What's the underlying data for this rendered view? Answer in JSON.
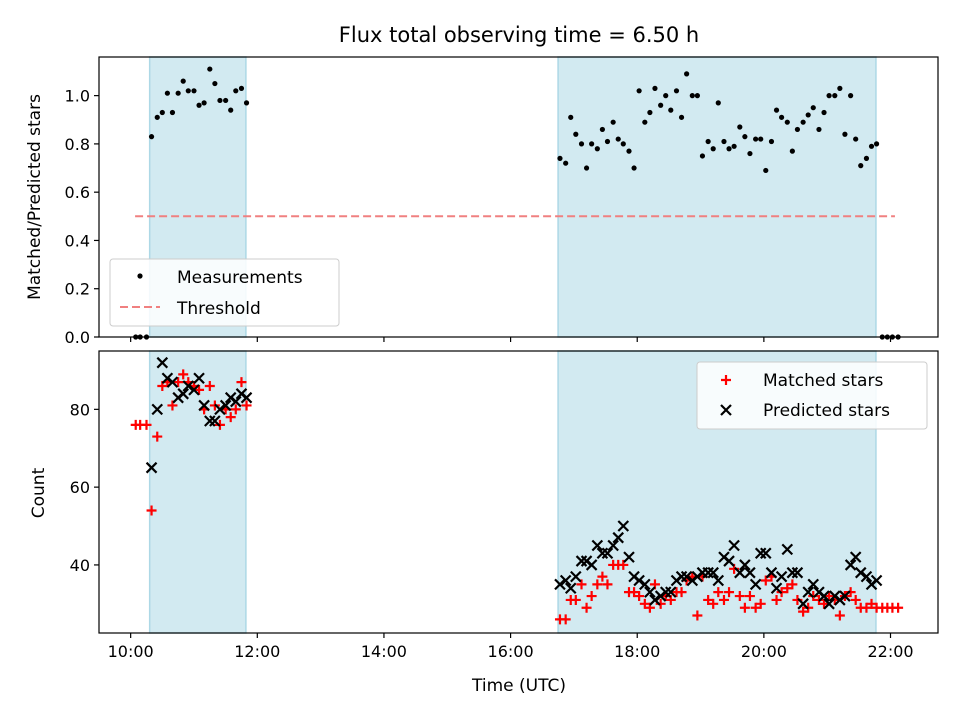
{
  "chart_data": [
    {
      "type": "scatter",
      "title": "Flux total observing time = 6.50 h",
      "xlabel": "",
      "ylabel": "Matched/Predicted stars",
      "ylim": [
        0,
        1.16
      ],
      "xlim": [
        9.5,
        22.75
      ],
      "yticks": [
        "0.0",
        "0.2",
        "0.4",
        "0.6",
        "0.8",
        "1.0"
      ],
      "legend": {
        "placement": "bottom-left",
        "entries": [
          "Measurements",
          "Threshold"
        ]
      },
      "shaded_intervals": [
        [
          10.3,
          11.82
        ],
        [
          16.75,
          21.77
        ]
      ],
      "shade_color": "#add8e6",
      "threshold": {
        "y": 0.5,
        "x_range": [
          10.07,
          22.07
        ],
        "color": "#f08080"
      },
      "series": [
        {
          "name": "Measurements",
          "color": "#000000",
          "points": [
            [
              10.08,
              0.0
            ],
            [
              10.15,
              0.0
            ],
            [
              10.25,
              0.0
            ],
            [
              10.33,
              0.83
            ],
            [
              10.42,
              0.91
            ],
            [
              10.5,
              0.93
            ],
            [
              10.58,
              1.01
            ],
            [
              10.66,
              0.93
            ],
            [
              10.75,
              1.01
            ],
            [
              10.83,
              1.06
            ],
            [
              10.91,
              1.02
            ],
            [
              11.0,
              1.02
            ],
            [
              11.08,
              0.96
            ],
            [
              11.16,
              0.97
            ],
            [
              11.25,
              1.11
            ],
            [
              11.33,
              1.05
            ],
            [
              11.41,
              0.98
            ],
            [
              11.5,
              0.98
            ],
            [
              11.58,
              0.94
            ],
            [
              11.66,
              1.02
            ],
            [
              11.75,
              1.03
            ],
            [
              11.83,
              0.97
            ],
            [
              16.78,
              0.74
            ],
            [
              16.87,
              0.72
            ],
            [
              16.95,
              0.91
            ],
            [
              17.03,
              0.84
            ],
            [
              17.12,
              0.8
            ],
            [
              17.2,
              0.7
            ],
            [
              17.28,
              0.8
            ],
            [
              17.37,
              0.78
            ],
            [
              17.45,
              0.86
            ],
            [
              17.53,
              0.81
            ],
            [
              17.62,
              0.89
            ],
            [
              17.7,
              0.82
            ],
            [
              17.78,
              0.8
            ],
            [
              17.87,
              0.77
            ],
            [
              17.95,
              0.7
            ],
            [
              18.03,
              1.02
            ],
            [
              18.12,
              0.89
            ],
            [
              18.2,
              0.93
            ],
            [
              18.28,
              1.03
            ],
            [
              18.37,
              0.96
            ],
            [
              18.45,
              1.0
            ],
            [
              18.53,
              0.94
            ],
            [
              18.62,
              1.02
            ],
            [
              18.7,
              0.91
            ],
            [
              18.78,
              1.09
            ],
            [
              18.87,
              1.0
            ],
            [
              18.95,
              1.0
            ],
            [
              19.03,
              0.75
            ],
            [
              19.12,
              0.81
            ],
            [
              19.2,
              0.78
            ],
            [
              19.28,
              0.97
            ],
            [
              19.37,
              0.81
            ],
            [
              19.45,
              0.78
            ],
            [
              19.53,
              0.79
            ],
            [
              19.62,
              0.87
            ],
            [
              19.7,
              0.83
            ],
            [
              19.78,
              0.76
            ],
            [
              19.87,
              0.82
            ],
            [
              19.95,
              0.82
            ],
            [
              20.03,
              0.69
            ],
            [
              20.12,
              0.81
            ],
            [
              20.2,
              0.94
            ],
            [
              20.28,
              0.91
            ],
            [
              20.37,
              0.89
            ],
            [
              20.45,
              0.77
            ],
            [
              20.53,
              0.86
            ],
            [
              20.62,
              0.89
            ],
            [
              20.7,
              0.92
            ],
            [
              20.78,
              0.95
            ],
            [
              20.87,
              0.86
            ],
            [
              20.95,
              0.93
            ],
            [
              21.03,
              1.0
            ],
            [
              21.12,
              1.0
            ],
            [
              21.2,
              1.03
            ],
            [
              21.28,
              0.84
            ],
            [
              21.37,
              1.0
            ],
            [
              21.45,
              0.82
            ],
            [
              21.53,
              0.71
            ],
            [
              21.62,
              0.74
            ],
            [
              21.7,
              0.79
            ],
            [
              21.78,
              0.8
            ],
            [
              21.87,
              0.0
            ],
            [
              21.95,
              0.0
            ],
            [
              22.03,
              0.0
            ],
            [
              22.12,
              0.0
            ]
          ]
        }
      ]
    },
    {
      "type": "scatter",
      "title": "",
      "xlabel": "Time (UTC)",
      "ylabel": "Count",
      "ylim": [
        22.5,
        95
      ],
      "xlim": [
        9.5,
        22.75
      ],
      "yticks": [
        "40",
        "60",
        "80"
      ],
      "xticks": [
        "10:00",
        "12:00",
        "14:00",
        "16:00",
        "18:00",
        "20:00",
        "22:00"
      ],
      "legend": {
        "placement": "top-right",
        "entries": [
          "Matched stars",
          "Predicted stars"
        ]
      },
      "shaded_intervals": [
        [
          10.3,
          11.82
        ],
        [
          16.75,
          21.77
        ]
      ],
      "shade_color": "#add8e6",
      "series": [
        {
          "name": "Matched stars",
          "marker": "plus",
          "color": "#ff0000",
          "points": [
            [
              10.08,
              76
            ],
            [
              10.15,
              76
            ],
            [
              10.25,
              76
            ],
            [
              10.33,
              54
            ],
            [
              10.42,
              73
            ],
            [
              10.5,
              86
            ],
            [
              10.58,
              87
            ],
            [
              10.66,
              81
            ],
            [
              10.75,
              87
            ],
            [
              10.83,
              89
            ],
            [
              10.91,
              87
            ],
            [
              11.0,
              86
            ],
            [
              11.08,
              85
            ],
            [
              11.16,
              80
            ],
            [
              11.25,
              86
            ],
            [
              11.33,
              81
            ],
            [
              11.41,
              76
            ],
            [
              11.5,
              80
            ],
            [
              11.58,
              78
            ],
            [
              11.66,
              80
            ],
            [
              11.75,
              87
            ],
            [
              11.83,
              81
            ],
            [
              16.78,
              26
            ],
            [
              16.87,
              26
            ],
            [
              16.95,
              31
            ],
            [
              17.03,
              31
            ],
            [
              17.12,
              35
            ],
            [
              17.2,
              29
            ],
            [
              17.28,
              32
            ],
            [
              17.37,
              35
            ],
            [
              17.45,
              37
            ],
            [
              17.53,
              35
            ],
            [
              17.62,
              40
            ],
            [
              17.7,
              40
            ],
            [
              17.78,
              40
            ],
            [
              17.87,
              33
            ],
            [
              17.95,
              33
            ],
            [
              18.03,
              32
            ],
            [
              18.12,
              30
            ],
            [
              18.2,
              29
            ],
            [
              18.28,
              35
            ],
            [
              18.37,
              30
            ],
            [
              18.45,
              32
            ],
            [
              18.53,
              31
            ],
            [
              18.62,
              33
            ],
            [
              18.7,
              33
            ],
            [
              18.78,
              36
            ],
            [
              18.87,
              37
            ],
            [
              18.95,
              27
            ],
            [
              19.03,
              37
            ],
            [
              19.12,
              31
            ],
            [
              19.2,
              30
            ],
            [
              19.28,
              33
            ],
            [
              19.37,
              31
            ],
            [
              19.45,
              33
            ],
            [
              19.53,
              39
            ],
            [
              19.62,
              32
            ],
            [
              19.7,
              29
            ],
            [
              19.78,
              32
            ],
            [
              19.87,
              29
            ],
            [
              19.95,
              30
            ],
            [
              20.03,
              36
            ],
            [
              20.12,
              37
            ],
            [
              20.2,
              31
            ],
            [
              20.28,
              33
            ],
            [
              20.37,
              34
            ],
            [
              20.45,
              35
            ],
            [
              20.53,
              31
            ],
            [
              20.62,
              28
            ],
            [
              20.7,
              29
            ],
            [
              20.78,
              32
            ],
            [
              20.87,
              31
            ],
            [
              20.95,
              30
            ],
            [
              21.03,
              32
            ],
            [
              21.12,
              31
            ],
            [
              21.2,
              27
            ],
            [
              21.28,
              32
            ],
            [
              21.37,
              33
            ],
            [
              21.45,
              31
            ],
            [
              21.53,
              29
            ],
            [
              21.62,
              29
            ],
            [
              21.7,
              30
            ],
            [
              21.78,
              29
            ],
            [
              21.87,
              29
            ],
            [
              21.95,
              29
            ],
            [
              22.03,
              29
            ],
            [
              22.12,
              29
            ]
          ]
        },
        {
          "name": "Predicted stars",
          "marker": "x",
          "color": "#000000",
          "points": [
            [
              10.33,
              65
            ],
            [
              10.42,
              80
            ],
            [
              10.5,
              92
            ],
            [
              10.58,
              88
            ],
            [
              10.66,
              87
            ],
            [
              10.75,
              83
            ],
            [
              10.83,
              84
            ],
            [
              10.91,
              86
            ],
            [
              11.0,
              85
            ],
            [
              11.08,
              88
            ],
            [
              11.16,
              81
            ],
            [
              11.25,
              77
            ],
            [
              11.33,
              77
            ],
            [
              11.41,
              80
            ],
            [
              11.5,
              81
            ],
            [
              11.58,
              83
            ],
            [
              11.66,
              82
            ],
            [
              11.75,
              84
            ],
            [
              11.83,
              83
            ],
            [
              16.78,
              35
            ],
            [
              16.87,
              36
            ],
            [
              16.95,
              34
            ],
            [
              17.03,
              37
            ],
            [
              17.12,
              41
            ],
            [
              17.2,
              41
            ],
            [
              17.28,
              40
            ],
            [
              17.37,
              45
            ],
            [
              17.45,
              43
            ],
            [
              17.53,
              43
            ],
            [
              17.62,
              45
            ],
            [
              17.7,
              47
            ],
            [
              17.78,
              50
            ],
            [
              17.87,
              42
            ],
            [
              17.95,
              37
            ],
            [
              18.03,
              36
            ],
            [
              18.12,
              35
            ],
            [
              18.2,
              33
            ],
            [
              18.28,
              31
            ],
            [
              18.37,
              32
            ],
            [
              18.45,
              33
            ],
            [
              18.53,
              33
            ],
            [
              18.62,
              36
            ],
            [
              18.7,
              37
            ],
            [
              18.78,
              37
            ],
            [
              18.87,
              36
            ],
            [
              18.95,
              37
            ],
            [
              19.03,
              38
            ],
            [
              19.12,
              38
            ],
            [
              19.2,
              38
            ],
            [
              19.28,
              36
            ],
            [
              19.37,
              42
            ],
            [
              19.45,
              41
            ],
            [
              19.53,
              45
            ],
            [
              19.62,
              38
            ],
            [
              19.7,
              40
            ],
            [
              19.78,
              38
            ],
            [
              19.87,
              35
            ],
            [
              19.95,
              43
            ],
            [
              20.03,
              43
            ],
            [
              20.12,
              38
            ],
            [
              20.2,
              34
            ],
            [
              20.28,
              37
            ],
            [
              20.37,
              44
            ],
            [
              20.45,
              38
            ],
            [
              20.53,
              38
            ],
            [
              20.62,
              30
            ],
            [
              20.7,
              33
            ],
            [
              20.78,
              35
            ],
            [
              20.87,
              33
            ],
            [
              20.95,
              32
            ],
            [
              21.03,
              30
            ],
            [
              21.12,
              32
            ],
            [
              21.2,
              31
            ],
            [
              21.28,
              32
            ],
            [
              21.37,
              40
            ],
            [
              21.45,
              42
            ],
            [
              21.53,
              38
            ],
            [
              21.62,
              37
            ],
            [
              21.7,
              35
            ],
            [
              21.78,
              36
            ]
          ]
        }
      ]
    }
  ]
}
